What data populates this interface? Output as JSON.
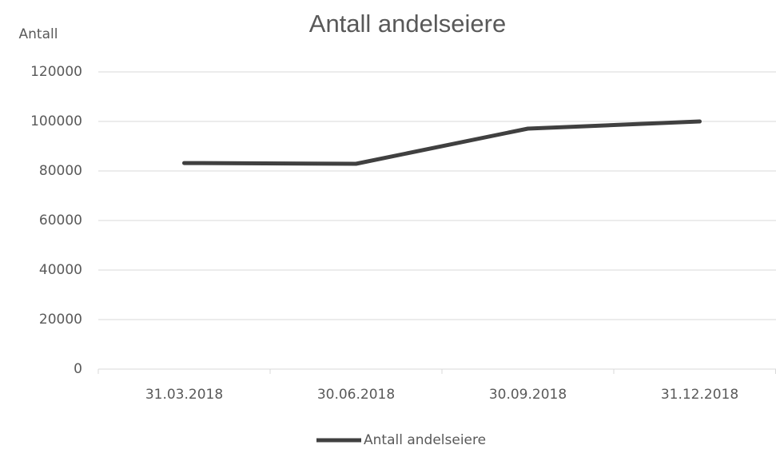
{
  "chart_data": {
    "type": "line",
    "title": "Antall andelseiere",
    "y_label": "Antall",
    "categories": [
      "31.03.2018",
      "30.06.2018",
      "30.09.2018",
      "31.12.2018"
    ],
    "series": [
      {
        "name": "Antall andelseiere",
        "color": "#404040",
        "values": [
          83200,
          82900,
          97100,
          100000
        ]
      }
    ],
    "ylim": [
      0,
      120000
    ],
    "yticks": [
      0,
      20000,
      40000,
      60000,
      80000,
      100000,
      120000
    ],
    "grid": true,
    "legend": "bottom"
  }
}
